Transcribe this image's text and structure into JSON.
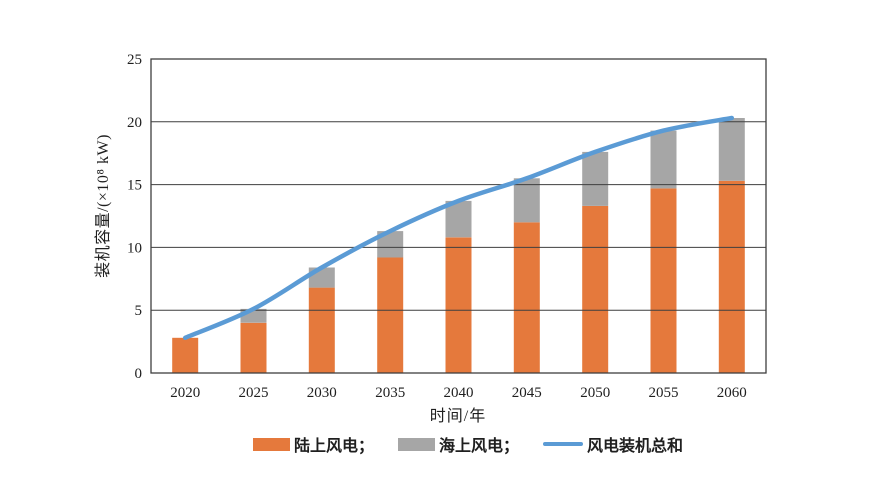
{
  "page": {
    "background": "#ffffff"
  },
  "chart_data": {
    "type": "bar",
    "subtype": "stacked-bar-with-line",
    "title": "",
    "xlabel": "时间/年",
    "ylabel": "装机容量/(×10⁸ kW)",
    "categories": [
      "2020",
      "2025",
      "2030",
      "2035",
      "2040",
      "2045",
      "2050",
      "2055",
      "2060"
    ],
    "series": [
      {
        "name": "陆上风电",
        "type": "bar",
        "stack": "capacity",
        "color": "#e5793c",
        "values": [
          2.8,
          4.0,
          6.8,
          9.2,
          10.8,
          12.0,
          13.3,
          14.7,
          15.3
        ]
      },
      {
        "name": "海上风电",
        "type": "bar",
        "stack": "capacity",
        "color": "#a6a6a6",
        "values": [
          0.0,
          1.1,
          1.6,
          2.1,
          2.9,
          3.5,
          4.3,
          4.6,
          5.0
        ]
      },
      {
        "name": "风电装机总和",
        "type": "line",
        "color": "#5b9bd5",
        "values": [
          2.8,
          5.1,
          8.4,
          11.3,
          13.7,
          15.5,
          17.6,
          19.3,
          20.3
        ]
      }
    ],
    "ylim": [
      0,
      25
    ],
    "yticks": [
      0,
      5,
      10,
      15,
      20,
      25
    ],
    "grid": "horizontal",
    "gridlines_over_bars": true,
    "legend_position": "bottom",
    "axis_color": "#3f3f3f",
    "text_color": "#1f1f1f",
    "tick_font_size": 15
  },
  "legend": {
    "items": [
      {
        "label": "陆上风电；",
        "swatch": "rect",
        "color": "#e5793c"
      },
      {
        "label": "海上风电；",
        "swatch": "rect",
        "color": "#a6a6a6"
      },
      {
        "label": "风电装机总和",
        "swatch": "line",
        "color": "#5b9bd5"
      }
    ]
  }
}
